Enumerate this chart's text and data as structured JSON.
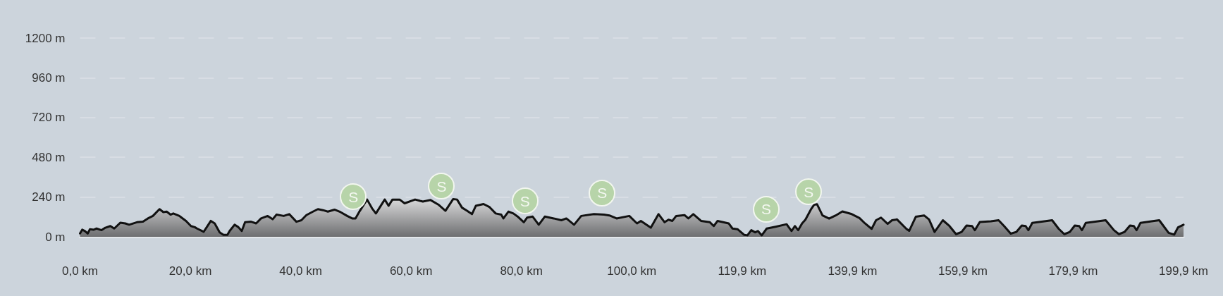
{
  "chart_data": {
    "type": "area",
    "x": [
      0,
      0.4,
      0.9,
      1.4,
      1.8,
      2.5,
      3.0,
      3.9,
      4.6,
      5.5,
      6.2,
      7.3,
      8.2,
      8.9,
      10.3,
      11.4,
      12.3,
      13.2,
      14.4,
      15.1,
      15.7,
      16.4,
      16.9,
      18.0,
      19.2,
      20.1,
      20.8,
      21.2,
      22.4,
      23.7,
      24.4,
      25.3,
      26.0,
      26.7,
      27.1,
      28.0,
      28.7,
      29.3,
      29.9,
      31.0,
      31.9,
      32.8,
      34.0,
      34.9,
      35.6,
      36.9,
      37.9,
      39.2,
      40.1,
      41.0,
      42.2,
      43.1,
      44.0,
      44.9,
      46.1,
      47.2,
      48.4,
      49.3,
      49.9,
      50.7,
      52.0,
      52.9,
      53.6,
      55.2,
      55.9,
      56.6,
      57.9,
      58.8,
      60.7,
      61.6,
      62.1,
      63.5,
      64.9,
      66.2,
      67.6,
      68.3,
      69.2,
      70.1,
      71.0,
      71.7,
      73.1,
      74.2,
      75.3,
      76.3,
      76.7,
      77.6,
      78.5,
      79.4,
      80.4,
      81.0,
      82.0,
      83.1,
      84.2,
      85.8,
      87.2,
      88.1,
      89.5,
      90.8,
      93.1,
      94.9,
      95.9,
      97.2,
      99.5,
      100.9,
      101.6,
      103.4,
      104.8,
      105.9,
      106.6,
      107.3,
      108.0,
      109.5,
      110.2,
      111.1,
      112.5,
      114.1,
      114.8,
      115.5,
      117.5,
      118.2,
      119.1,
      120.3,
      120.9,
      121.6,
      122.3,
      122.8,
      123.5,
      124.4,
      126.0,
      128.0,
      128.9,
      129.5,
      130.1,
      130.8,
      131.4,
      132.4,
      133.0,
      133.5,
      134.5,
      135.7,
      136.9,
      138.1,
      139.8,
      141.2,
      142.2,
      143.4,
      144.2,
      145.1,
      146.3,
      147.1,
      148.0,
      149.7,
      150.2,
      151.4,
      152.9,
      153.8,
      154.8,
      156.3,
      157.5,
      158.7,
      159.7,
      160.6,
      161.6,
      162.1,
      163.0,
      165.0,
      166.4,
      167.4,
      168.6,
      169.6,
      170.6,
      171.3,
      171.8,
      172.5,
      174.7,
      176.1,
      177.3,
      178.3,
      179.3,
      180.2,
      181.0,
      181.5,
      182.2,
      184.4,
      185.8,
      187.3,
      188.2,
      189.2,
      190.2,
      190.9,
      191.4,
      192.1,
      194.1,
      195.5,
      197.2,
      198.2,
      198.9,
      199.9
    ],
    "values": [
      20,
      43,
      35,
      20,
      46,
      43,
      50,
      40,
      55,
      65,
      50,
      85,
      81,
      73,
      88,
      91,
      111,
      126,
      167,
      149,
      152,
      134,
      141,
      126,
      96,
      65,
      58,
      50,
      30,
      96,
      81,
      27,
      12,
      12,
      35,
      73,
      58,
      35,
      88,
      91,
      81,
      111,
      126,
      106,
      134,
      126,
      137,
      91,
      100,
      131,
      152,
      167,
      161,
      152,
      164,
      149,
      126,
      111,
      111,
      157,
      225,
      172,
      141,
      225,
      187,
      225,
      225,
      202,
      225,
      217,
      213,
      222,
      195,
      157,
      228,
      225,
      176,
      157,
      137,
      187,
      198,
      179,
      141,
      134,
      111,
      152,
      141,
      119,
      88,
      116,
      122,
      73,
      122,
      111,
      100,
      111,
      73,
      126,
      137,
      134,
      129,
      111,
      126,
      81,
      96,
      55,
      137,
      88,
      103,
      96,
      126,
      131,
      111,
      137,
      96,
      88,
      65,
      96,
      81,
      50,
      46,
      12,
      9,
      40,
      27,
      35,
      9,
      50,
      61,
      76,
      35,
      65,
      40,
      81,
      103,
      165,
      194,
      197,
      129,
      110,
      129,
      153,
      137,
      113,
      81,
      48,
      100,
      116,
      78,
      100,
      105,
      48,
      36,
      121,
      129,
      105,
      29,
      100,
      65,
      16,
      29,
      68,
      65,
      40,
      89,
      94,
      100,
      65,
      19,
      29,
      68,
      65,
      40,
      84,
      94,
      100,
      48,
      16,
      29,
      68,
      65,
      40,
      84,
      94,
      100,
      40,
      16,
      29,
      68,
      65,
      40,
      84,
      94,
      100,
      24,
      13,
      57,
      73
    ],
    "color": "#111111",
    "xlim": [
      0,
      199.9
    ],
    "xticks": [
      {
        "value": 0,
        "label": "0,0 km"
      },
      {
        "value": 19.99,
        "label": "20,0 km"
      },
      {
        "value": 39.98,
        "label": "40,0 km"
      },
      {
        "value": 59.97,
        "label": "60,0 km"
      },
      {
        "value": 79.96,
        "label": "80,0 km"
      },
      {
        "value": 99.95,
        "label": "100,0 km"
      },
      {
        "value": 119.94,
        "label": "119,9 km"
      },
      {
        "value": 139.93,
        "label": "139,9 km"
      },
      {
        "value": 159.92,
        "label": "159,9 km"
      },
      {
        "value": 179.91,
        "label": "179,9 km"
      },
      {
        "value": 199.9,
        "label": "199,9 km"
      }
    ],
    "ylim": [
      0,
      1200
    ],
    "yticks": [
      {
        "value": 0,
        "label": "0 m"
      },
      {
        "value": 240,
        "label": "240 m"
      },
      {
        "value": 480,
        "label": "480 m"
      },
      {
        "value": 720,
        "label": "720 m"
      },
      {
        "value": 960,
        "label": "960 m"
      },
      {
        "value": 1200,
        "label": "1200 m"
      }
    ],
    "grid": "y",
    "marker": "none",
    "line_style": "solid",
    "annotations": [
      {
        "text": "S",
        "x": 49.5,
        "y": 242
      },
      {
        "text": "S",
        "x": 65.5,
        "y": 306
      },
      {
        "text": "S",
        "x": 80.6,
        "y": 216
      },
      {
        "text": "S",
        "x": 94.6,
        "y": 265
      },
      {
        "text": "S",
        "x": 124.3,
        "y": 168
      },
      {
        "text": "S",
        "x": 132.0,
        "y": 272
      }
    ]
  }
}
